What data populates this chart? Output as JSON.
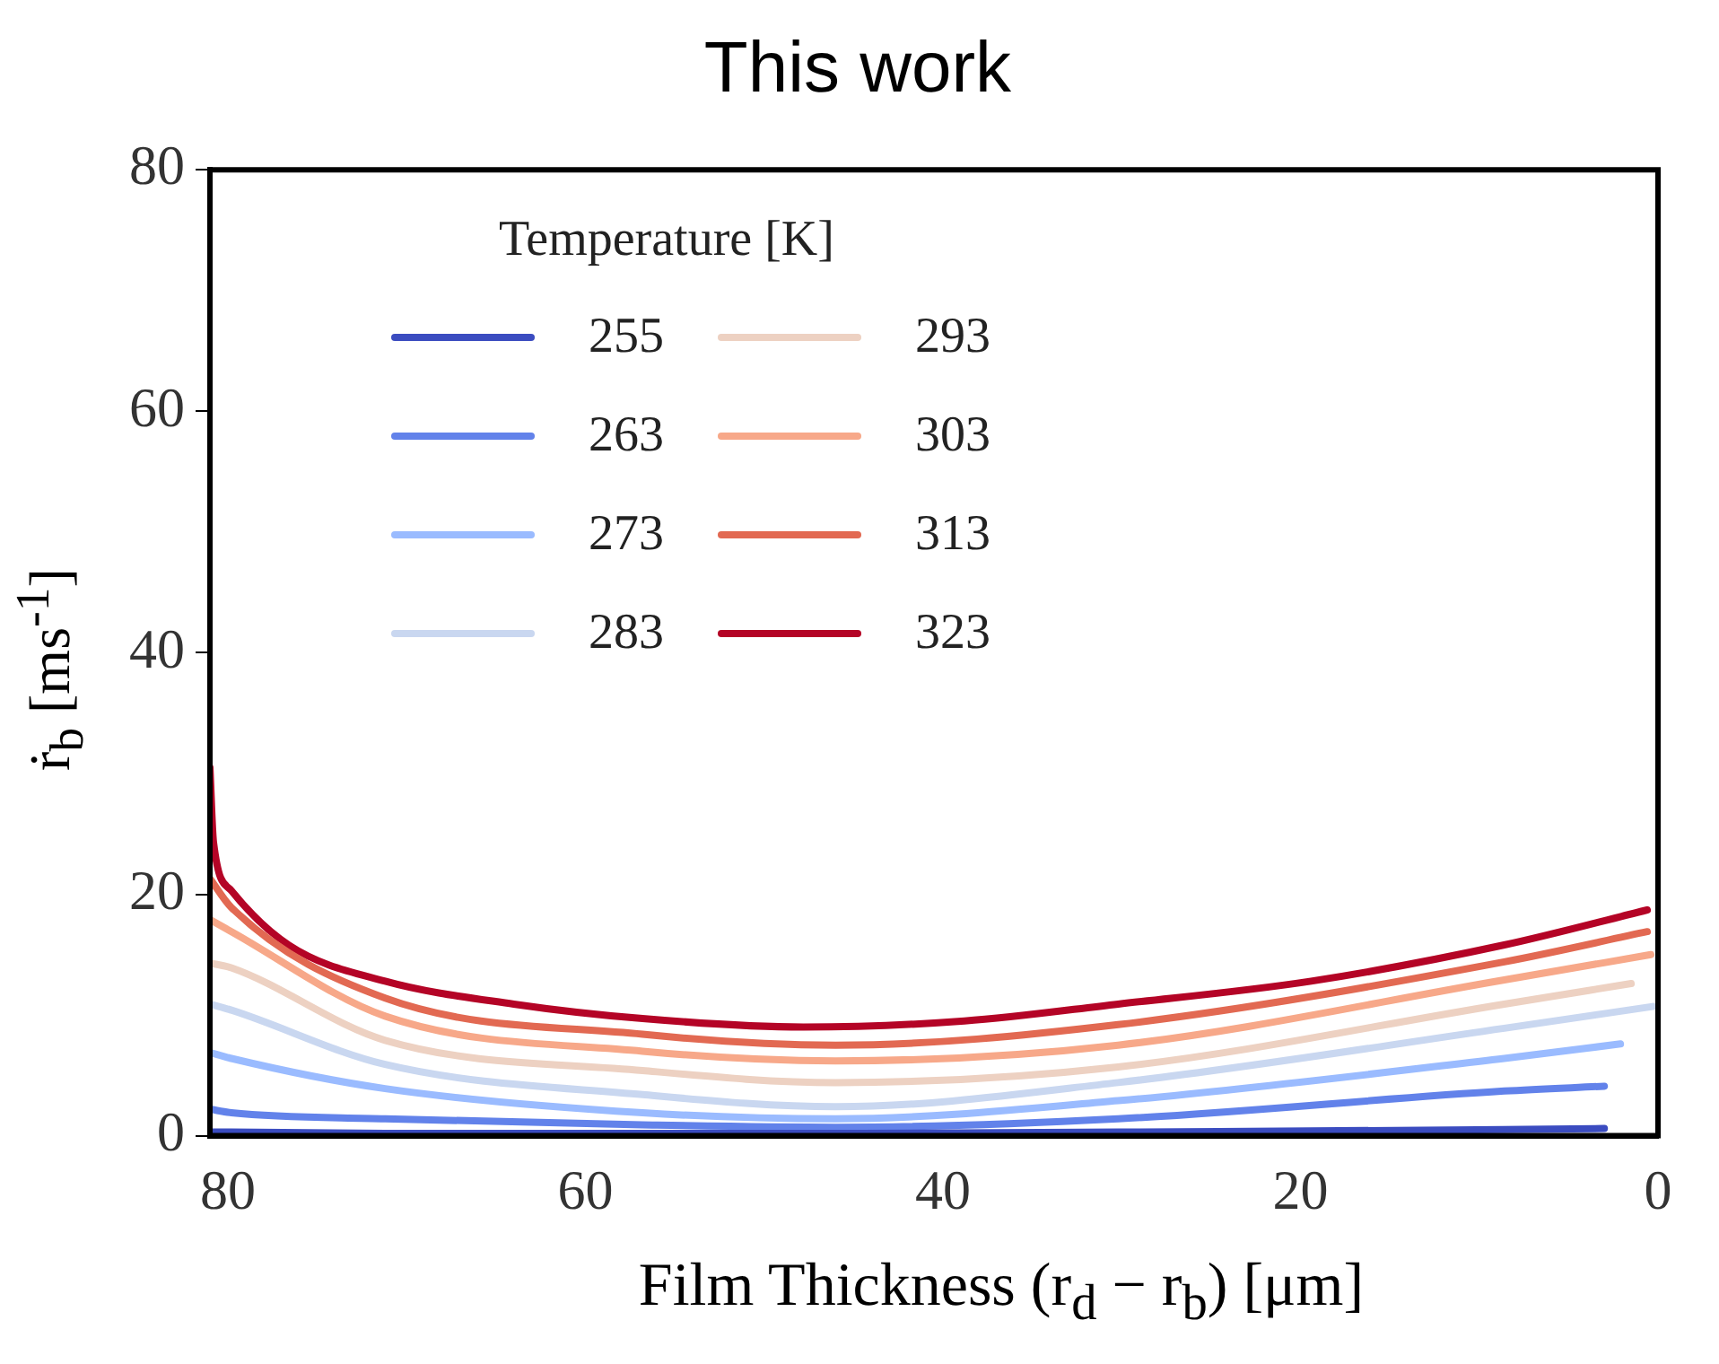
{
  "chart_data": {
    "type": "line",
    "title": "This work",
    "xlabel": "Film Thickness (r$_{d}$ − r$_{b}$) [μm]",
    "ylabel": "ṙ$_{b}$ [ms$^{-1}$]",
    "legend_title": "Temperature [K]",
    "legend": "top left",
    "grid": false,
    "marker": "none",
    "line_style": "solid",
    "xlim": [
      81,
      0
    ],
    "xticks": [
      80,
      60,
      40,
      20,
      0
    ],
    "ylim": [
      0,
      80
    ],
    "yticks": [
      0,
      20,
      40,
      60,
      80
    ],
    "series": [
      {
        "name": "255",
        "color": "#3b4cc0",
        "x": [
          81,
          79.8,
          71.2,
          56.8,
          46,
          30.2,
          8.6,
          3
        ],
        "values": [
          0.3,
          0.3,
          0.2,
          0.2,
          0.2,
          0.3,
          0.5,
          0.6
        ]
      },
      {
        "name": "263",
        "color": "#6282ea",
        "x": [
          81,
          79.8,
          71.2,
          56.8,
          46,
          30.2,
          8.6,
          3
        ],
        "values": [
          2.2,
          1.9,
          1.4,
          0.9,
          0.7,
          1.4,
          3.7,
          4.1
        ]
      },
      {
        "name": "273",
        "color": "#9abbff",
        "x": [
          81,
          79.8,
          71.2,
          56.8,
          46,
          30.2,
          8.6,
          2.1
        ],
        "values": [
          6.9,
          6.4,
          3.9,
          1.9,
          1.4,
          2.9,
          6.4,
          7.6
        ]
      },
      {
        "name": "283",
        "color": "#c9d7f0",
        "x": [
          81,
          79.8,
          71.2,
          56.8,
          46,
          30.2,
          8.6,
          0.3
        ],
        "values": [
          10.9,
          10.4,
          5.9,
          3.4,
          2.4,
          4.4,
          8.9,
          10.7
        ]
      },
      {
        "name": "293",
        "color": "#edd1c2",
        "x": [
          81,
          79.8,
          71.2,
          56.8,
          46,
          30.2,
          8.6,
          1.5
        ],
        "values": [
          14.3,
          13.9,
          7.9,
          5.4,
          4.4,
          5.7,
          10.9,
          12.6
        ]
      },
      {
        "name": "303",
        "color": "#f7a889",
        "x": [
          81,
          79.8,
          71.2,
          56.8,
          46,
          30.2,
          8.6,
          0.4
        ],
        "values": [
          17.9,
          16.9,
          9.9,
          7.0,
          6.2,
          7.5,
          12.9,
          15.0
        ]
      },
      {
        "name": "313",
        "color": "#e26952",
        "x": [
          81,
          79.8,
          71.2,
          56.8,
          46,
          30.2,
          8.6,
          0.6
        ],
        "values": [
          21.3,
          18.9,
          11.4,
          8.4,
          7.5,
          9.2,
          14.4,
          16.9
        ]
      },
      {
        "name": "323",
        "color": "#b40426",
        "x": [
          81,
          80.8,
          79.8,
          76.6,
          71.2,
          64,
          56.8,
          47.8,
          38.8,
          30.2,
          19.4,
          8.6,
          0.6
        ],
        "values": [
          30.5,
          24.3,
          20.3,
          15.8,
          12.8,
          10.9,
          9.7,
          9.0,
          9.5,
          10.9,
          12.8,
          15.8,
          18.7
        ]
      }
    ]
  }
}
